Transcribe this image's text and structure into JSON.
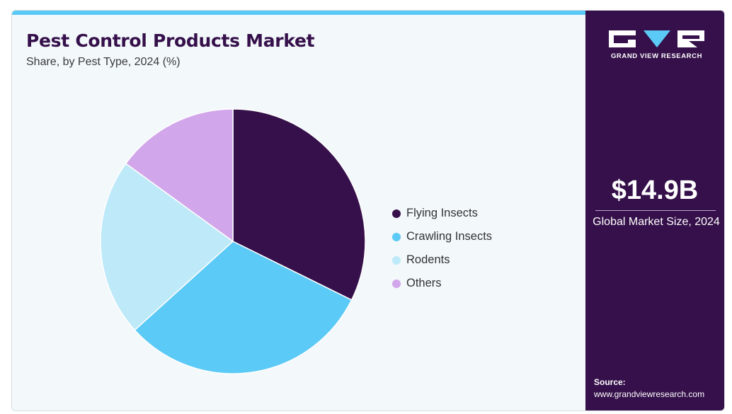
{
  "header": {
    "title": "Pest Control Products Market",
    "subtitle": "Share, by Pest Type, 2024 (%)"
  },
  "chart_data": {
    "type": "pie",
    "title": "Pest Control Products Market",
    "subtitle": "Share, by Pest Type, 2024 (%)",
    "categories": [
      "Flying Insects",
      "Crawling Insects",
      "Rodents",
      "Others"
    ],
    "values": [
      32.3,
      31.0,
      21.7,
      15.0
    ],
    "colors": [
      "#35104a",
      "#5ccaf6",
      "#bde9f8",
      "#d2a6ea"
    ],
    "legend_position": "right",
    "start_angle_deg": 0,
    "direction": "clockwise"
  },
  "sidebar": {
    "logo_text": "GRAND VIEW RESEARCH",
    "market_value": "$14.9B",
    "market_label": "Global Market Size, 2024",
    "source_label": "Source:",
    "source_url": "www.grandviewresearch.com"
  },
  "colors": {
    "brand_dark": "#35104a",
    "accent": "#59c9f6",
    "background": "#f3f8fb"
  }
}
